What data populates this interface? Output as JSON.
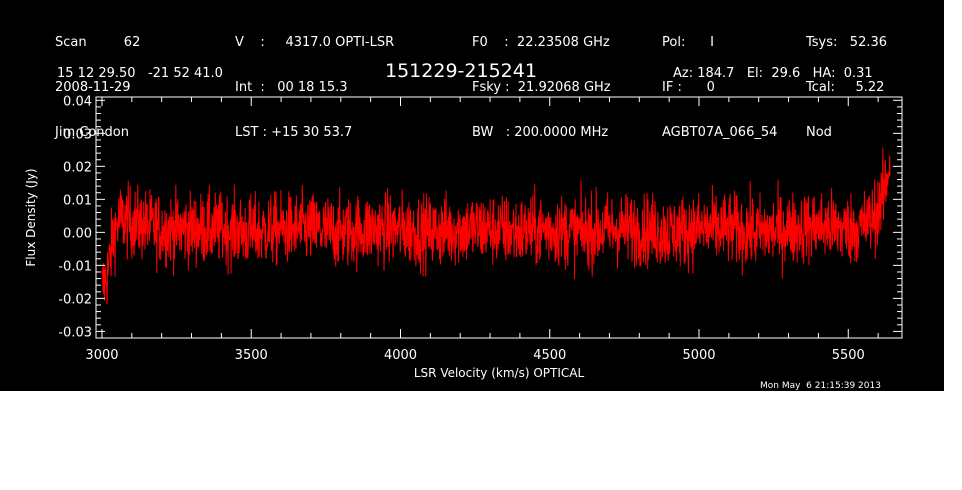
{
  "header": {
    "col1": [
      "Scan         62",
      "2008-11-29",
      "Jim Condon"
    ],
    "col2": [
      "V    :     4317.0 OPTI-LSR",
      "Int  :   00 18 15.3",
      "LST : +15 30 53.7"
    ],
    "col3": [
      "F0    :  22.23508 GHz",
      "Fsky :  21.92068 GHz",
      "BW   : 200.0000 MHz"
    ],
    "col4": [
      "Pol:      I",
      "IF :      0",
      "AGBT07A_066_54"
    ],
    "col5": [
      "Tsys:   52.36",
      "Tcal:     5.22",
      "Nod"
    ],
    "coords": "15 12 29.50   -21 52 41.0",
    "source": "151229-215241",
    "azel": "Az: 184.7   El:  29.6   HA:  0.31",
    "timestamp": "Mon May  6 21:15:39 2013"
  },
  "chart_data": {
    "type": "line",
    "xlabel": "LSR Velocity (km/s) OPTICAL",
    "ylabel": "Flux Density (Jy)",
    "xlim": [
      2980,
      5680
    ],
    "ylim": [
      -0.032,
      0.041
    ],
    "x_ticks": [
      3000,
      3500,
      4000,
      4500,
      5000,
      5500
    ],
    "x_tick_labels": [
      "3000",
      "3500",
      "4000",
      "4500",
      "5000",
      "5500"
    ],
    "y_ticks": [
      -0.03,
      -0.02,
      -0.01,
      0.0,
      0.01,
      0.02,
      0.03,
      0.04
    ],
    "y_tick_labels": [
      "-0.03",
      "-0.02",
      "-0.01",
      "0.00",
      "0.01",
      "0.02",
      "0.03",
      "0.04"
    ],
    "series": [
      {
        "color": "#ff0000",
        "x": [
          3000,
          3020,
          3040,
          3060,
          3100,
          3200,
          3300,
          3400,
          3500,
          3600,
          3700,
          3800,
          3900,
          4000,
          4100,
          4200,
          4300,
          4400,
          4500,
          4600,
          4700,
          4800,
          4900,
          5000,
          5100,
          5200,
          5300,
          5400,
          5500,
          5550,
          5580,
          5600,
          5620,
          5640
        ],
        "y": [
          -0.017,
          -0.012,
          0.0,
          0.004,
          0.003,
          0.001,
          0.001,
          0.001,
          0.0,
          0.001,
          0.001,
          0.0,
          0.001,
          0.001,
          0.0,
          0.001,
          0.001,
          0.0,
          0.001,
          0.0,
          0.001,
          0.001,
          0.0,
          0.001,
          0.001,
          0.0,
          0.001,
          0.002,
          0.001,
          0.002,
          0.004,
          0.007,
          0.012,
          0.022
        ],
        "noise_rms": 0.0055
      }
    ],
    "grid": false,
    "legend": "none"
  }
}
